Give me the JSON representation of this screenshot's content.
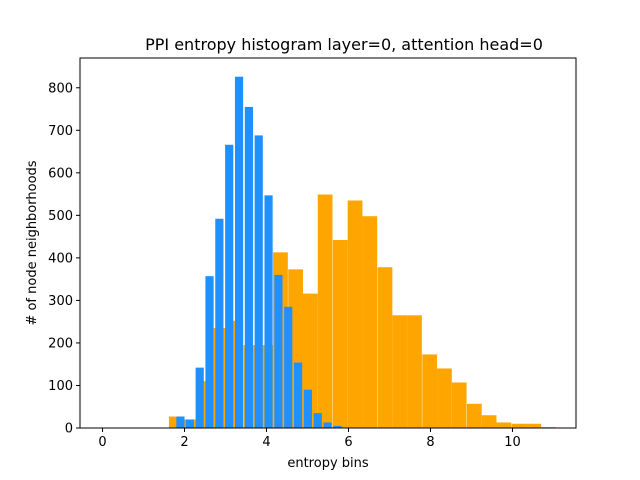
{
  "chart_data": {
    "type": "bar",
    "title": "PPI entropy histogram layer=0, attention head=0",
    "xlabel": "entropy bins",
    "ylabel": "# of node neighborhoods",
    "xlim": [
      -0.55,
      11.55
    ],
    "ylim": [
      0,
      870
    ],
    "xticks": [
      0,
      2,
      4,
      6,
      8,
      10
    ],
    "yticks": [
      0,
      100,
      200,
      300,
      400,
      500,
      600,
      700,
      800
    ],
    "grid": false,
    "series": [
      {
        "name": "orange",
        "color": "#FFA500",
        "bar_width": 0.36,
        "x": [
          1.8,
          2.16,
          2.53,
          2.89,
          3.25,
          3.62,
          3.98,
          4.34,
          4.71,
          5.07,
          5.43,
          5.8,
          6.16,
          6.52,
          6.89,
          7.25,
          7.61,
          7.98,
          8.34,
          8.7,
          9.07,
          9.43,
          9.79,
          10.16,
          10.52,
          10.88
        ],
        "values": [
          27,
          20,
          110,
          235,
          252,
          195,
          195,
          413,
          373,
          316,
          549,
          442,
          535,
          498,
          378,
          265,
          265,
          173,
          140,
          107,
          57,
          30,
          13,
          10,
          10,
          2
        ]
      },
      {
        "name": "blue",
        "color": "#1E90FF",
        "bar_width": 0.2,
        "x": [
          1.9,
          2.13,
          2.37,
          2.61,
          2.85,
          3.09,
          3.33,
          3.57,
          3.81,
          4.05,
          4.29,
          4.53,
          4.77,
          5.01,
          5.25,
          5.49,
          5.73
        ],
        "values": [
          27,
          20,
          142,
          357,
          492,
          666,
          826,
          755,
          688,
          547,
          360,
          285,
          154,
          90,
          35,
          13,
          5
        ]
      }
    ]
  }
}
